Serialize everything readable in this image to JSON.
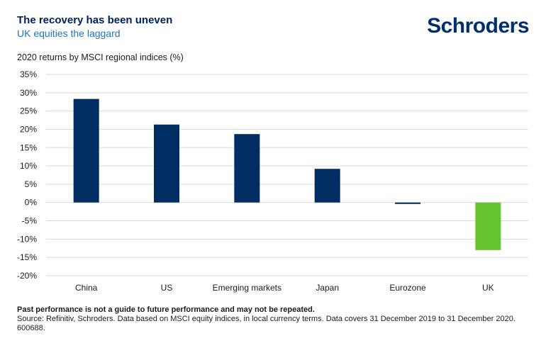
{
  "header": {
    "title": "The recovery has been uneven",
    "subtitle": "UK equities the laggard",
    "logo_text": "Schroders"
  },
  "chart_label": "2020 returns by MSCI regional indices (%)",
  "colors": {
    "primary": "#002d62",
    "highlight": "#66c431",
    "grid": "#d9d9d9"
  },
  "chart_data": {
    "type": "bar",
    "title": "2020 returns by MSCI regional indices (%)",
    "categories": [
      "China",
      "US",
      "Emerging markets",
      "Japan",
      "Eurozone",
      "UK"
    ],
    "values": [
      28.3,
      21.3,
      18.7,
      9.2,
      -0.4,
      -13.0
    ],
    "highlight_index": 5,
    "ylim": [
      -20,
      35
    ],
    "yticks": [
      35,
      30,
      25,
      20,
      15,
      10,
      5,
      0,
      -5,
      -10,
      -15,
      -20
    ],
    "ytick_labels": [
      "35%",
      "30%",
      "25%",
      "20%",
      "15%",
      "10%",
      "5%",
      "0%",
      "-5%",
      "-10%",
      "-15%",
      "-20%"
    ],
    "grid": true,
    "xlabel": "",
    "ylabel": ""
  },
  "footnote": {
    "disclaimer": "Past performance is not a guide to future performance and may not be repeated.",
    "source": "Source: Refinitiv, Schroders. Data based on MSCI equity indices, in local currency terms. Data covers 31 December 2019 to 31 December 2020.",
    "code": "600688."
  }
}
